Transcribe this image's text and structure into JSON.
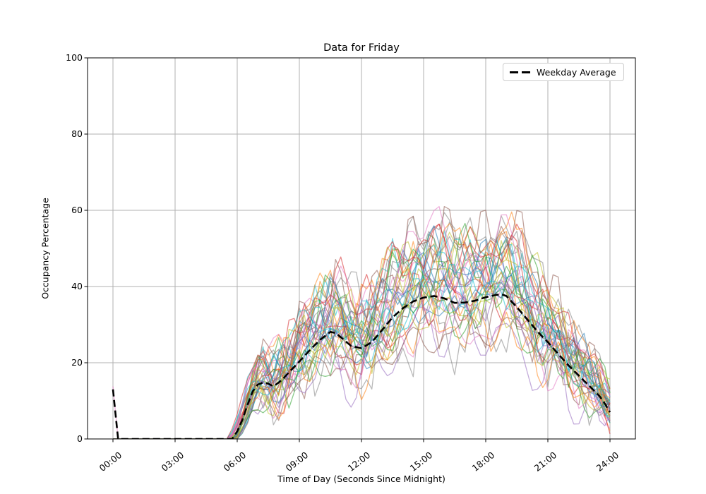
{
  "chart_data": {
    "type": "line",
    "title": "Data for Friday",
    "xlabel": "Time of Day (Seconds Since Midnight)",
    "ylabel": "Occupancy Percentage",
    "ylim": [
      0,
      100
    ],
    "xlim_hours": [
      -1.23,
      25.23
    ],
    "grid": true,
    "x_tick_hours": [
      0,
      3,
      6,
      9,
      12,
      15,
      18,
      21,
      24
    ],
    "x_tick_labels": [
      "00:00",
      "03:00",
      "06:00",
      "09:00",
      "12:00",
      "15:00",
      "18:00",
      "21:00",
      "24:00"
    ],
    "y_tick_values": [
      0,
      20,
      40,
      60,
      80,
      100
    ],
    "legend": {
      "label": "Weekday Average",
      "position": "upper right"
    },
    "colors": {
      "background": "#ffffff",
      "grid": "#b0b0b0",
      "spine": "#000000",
      "average_line": "#000000"
    },
    "average_series": {
      "name": "Weekday Average",
      "style": "dashed",
      "color": "#000000",
      "linewidth": 2.6,
      "x_hours": [
        0,
        0.25,
        0.5,
        1,
        1.5,
        2,
        2.5,
        3,
        3.5,
        4,
        4.5,
        5,
        5.5,
        5.75,
        6,
        6.25,
        6.5,
        6.75,
        7,
        7.25,
        7.5,
        7.75,
        8,
        8.25,
        8.5,
        9,
        9.5,
        10,
        10.5,
        10.75,
        11,
        11.5,
        12,
        12.5,
        13,
        13.5,
        14,
        14.5,
        15,
        15.5,
        16,
        16.5,
        17,
        17.5,
        18,
        18.5,
        18.75,
        19,
        19.5,
        20,
        20.5,
        21,
        21.5,
        22,
        22.5,
        23,
        23.5,
        23.75,
        24
      ],
      "y": [
        13,
        0,
        0,
        0,
        0,
        0,
        0,
        0,
        0,
        0,
        0,
        0,
        0,
        0,
        2,
        5,
        9,
        12.5,
        14.3,
        14.8,
        14.5,
        13.8,
        14.8,
        16,
        17.5,
        20.3,
        23.3,
        26,
        28.1,
        27.8,
        26.7,
        24.4,
        23.8,
        25.4,
        28.6,
        31.9,
        34.3,
        36.1,
        37.1,
        37.5,
        36.9,
        35.7,
        35.8,
        36.3,
        37.2,
        37.8,
        38,
        37.5,
        34.6,
        31.4,
        28.2,
        25.4,
        22.3,
        19.3,
        16.6,
        13.9,
        11.2,
        9.3,
        7
      ]
    },
    "individual_series": {
      "note": "Approximately 40 semi-transparent single-day occupancy traces; values approximate the spaghetti spread around the weekday average (zero before ~06:00, peaks 40-60 between 14:00-19:00, ending 1-16 at 24:00). Reconstructed procedurally from seed.",
      "count": 40,
      "seed": 42,
      "alpha": 0.55,
      "linewidth": 1.3,
      "resolution_hours": 0.25,
      "scale_range": [
        0.75,
        1.45
      ],
      "max_value": 61,
      "spike_line_index": 6,
      "spike_value": 13.8,
      "palette": [
        "#1f77b4",
        "#ff7f0e",
        "#2ca02c",
        "#d62728",
        "#9467bd",
        "#8c564b",
        "#e377c2",
        "#7f7f7f",
        "#bcbd22",
        "#17becf"
      ]
    }
  }
}
